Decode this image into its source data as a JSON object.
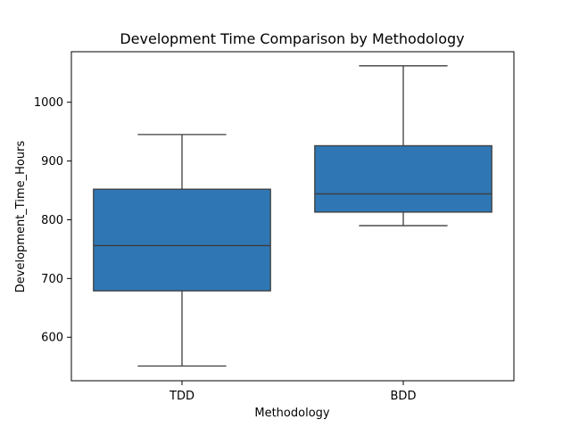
{
  "chart_data": {
    "type": "box",
    "title": "Development Time Comparison by Methodology",
    "xlabel": "Methodology",
    "ylabel": "Development_Time_Hours",
    "categories": [
      "TDD",
      "BDD"
    ],
    "boxes": [
      {
        "category": "TDD",
        "min": 551,
        "q1": 679,
        "median": 756,
        "q3": 852,
        "max": 945
      },
      {
        "category": "BDD",
        "min": 790,
        "q1": 813,
        "median": 844,
        "q3": 926,
        "max": 1062
      }
    ],
    "ylim": [
      526,
      1086
    ],
    "yticks": [
      600,
      700,
      800,
      900,
      1000
    ],
    "grid": false,
    "box_color": "#2f77b4",
    "line_color": "#3d3d3d"
  }
}
